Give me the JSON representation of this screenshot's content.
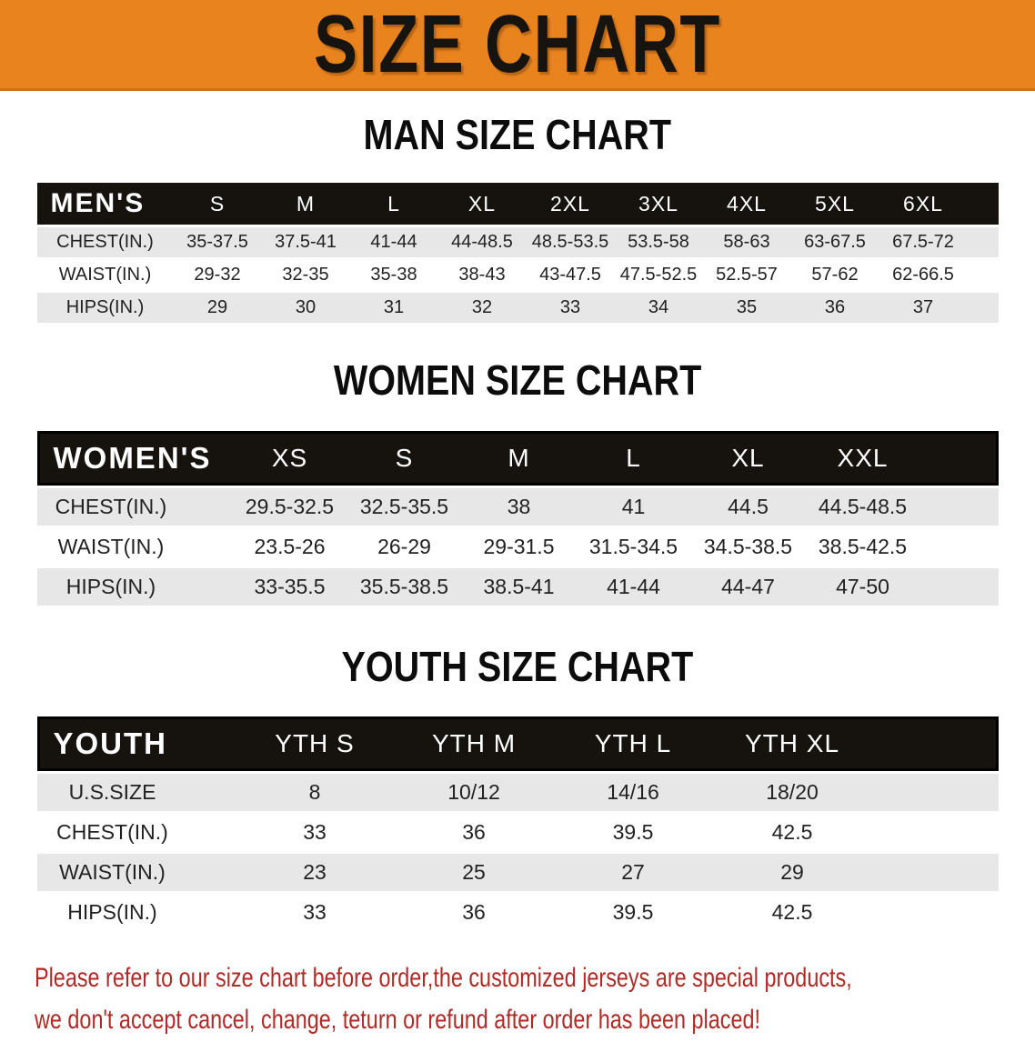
{
  "banner": {
    "title": "SIZE CHART"
  },
  "colors": {
    "banner_bg": "#e8831e",
    "table_header_bg": "#16130f",
    "row_gray": "#e7e7e7",
    "note_red": "#b02a26"
  },
  "tables": [
    {
      "id": "men",
      "section_title": "MAN SIZE CHART",
      "header_label": "MEN'S",
      "sizes": [
        "S",
        "M",
        "L",
        "XL",
        "2XL",
        "3XL",
        "4XL",
        "5XL",
        "6XL"
      ],
      "rows": [
        {
          "label": "CHEST(IN.)",
          "values": [
            "35-37.5",
            "37.5-41",
            "41-44",
            "44-48.5",
            "48.5-53.5",
            "53.5-58",
            "58-63",
            "63-67.5",
            "67.5-72"
          ]
        },
        {
          "label": "WAIST(IN.)",
          "values": [
            "29-32",
            "32-35",
            "35-38",
            "38-43",
            "43-47.5",
            "47.5-52.5",
            "52.5-57",
            "57-62",
            "62-66.5"
          ]
        },
        {
          "label": "HIPS(IN.)",
          "values": [
            "29",
            "30",
            "31",
            "32",
            "33",
            "34",
            "35",
            "36",
            "37"
          ]
        }
      ]
    },
    {
      "id": "women",
      "section_title": "WOMEN SIZE CHART",
      "header_label": "WOMEN'S",
      "sizes": [
        "XS",
        "S",
        "M",
        "L",
        "XL",
        "XXL"
      ],
      "rows": [
        {
          "label": "CHEST(IN.)",
          "values": [
            "29.5-32.5",
            "32.5-35.5",
            "38",
            "41",
            "44.5",
            "44.5-48.5"
          ]
        },
        {
          "label": "WAIST(IN.)",
          "values": [
            "23.5-26",
            "26-29",
            "29-31.5",
            "31.5-34.5",
            "34.5-38.5",
            "38.5-42.5"
          ]
        },
        {
          "label": "HIPS(IN.)",
          "values": [
            "33-35.5",
            "35.5-38.5",
            "38.5-41",
            "41-44",
            "44-47",
            "47-50"
          ]
        }
      ]
    },
    {
      "id": "youth",
      "section_title": "YOUTH SIZE CHART",
      "header_label": "YOUTH",
      "sizes": [
        "YTH S",
        "YTH M",
        "YTH L",
        "YTH XL"
      ],
      "rows": [
        {
          "label": "U.S.SIZE",
          "values": [
            "8",
            "10/12",
            "14/16",
            "18/20"
          ]
        },
        {
          "label": "CHEST(IN.)",
          "values": [
            "33",
            "36",
            "39.5",
            "42.5"
          ]
        },
        {
          "label": "WAIST(IN.)",
          "values": [
            "23",
            "25",
            "27",
            "29"
          ]
        },
        {
          "label": "HIPS(IN.)",
          "values": [
            "33",
            "36",
            "39.5",
            "42.5"
          ]
        }
      ]
    }
  ],
  "footer_note": {
    "line1": "Please refer to our size chart before order,the customized jerseys are special products,",
    "line2": "we don't accept cancel, change, teturn or refund after order has been placed!"
  }
}
